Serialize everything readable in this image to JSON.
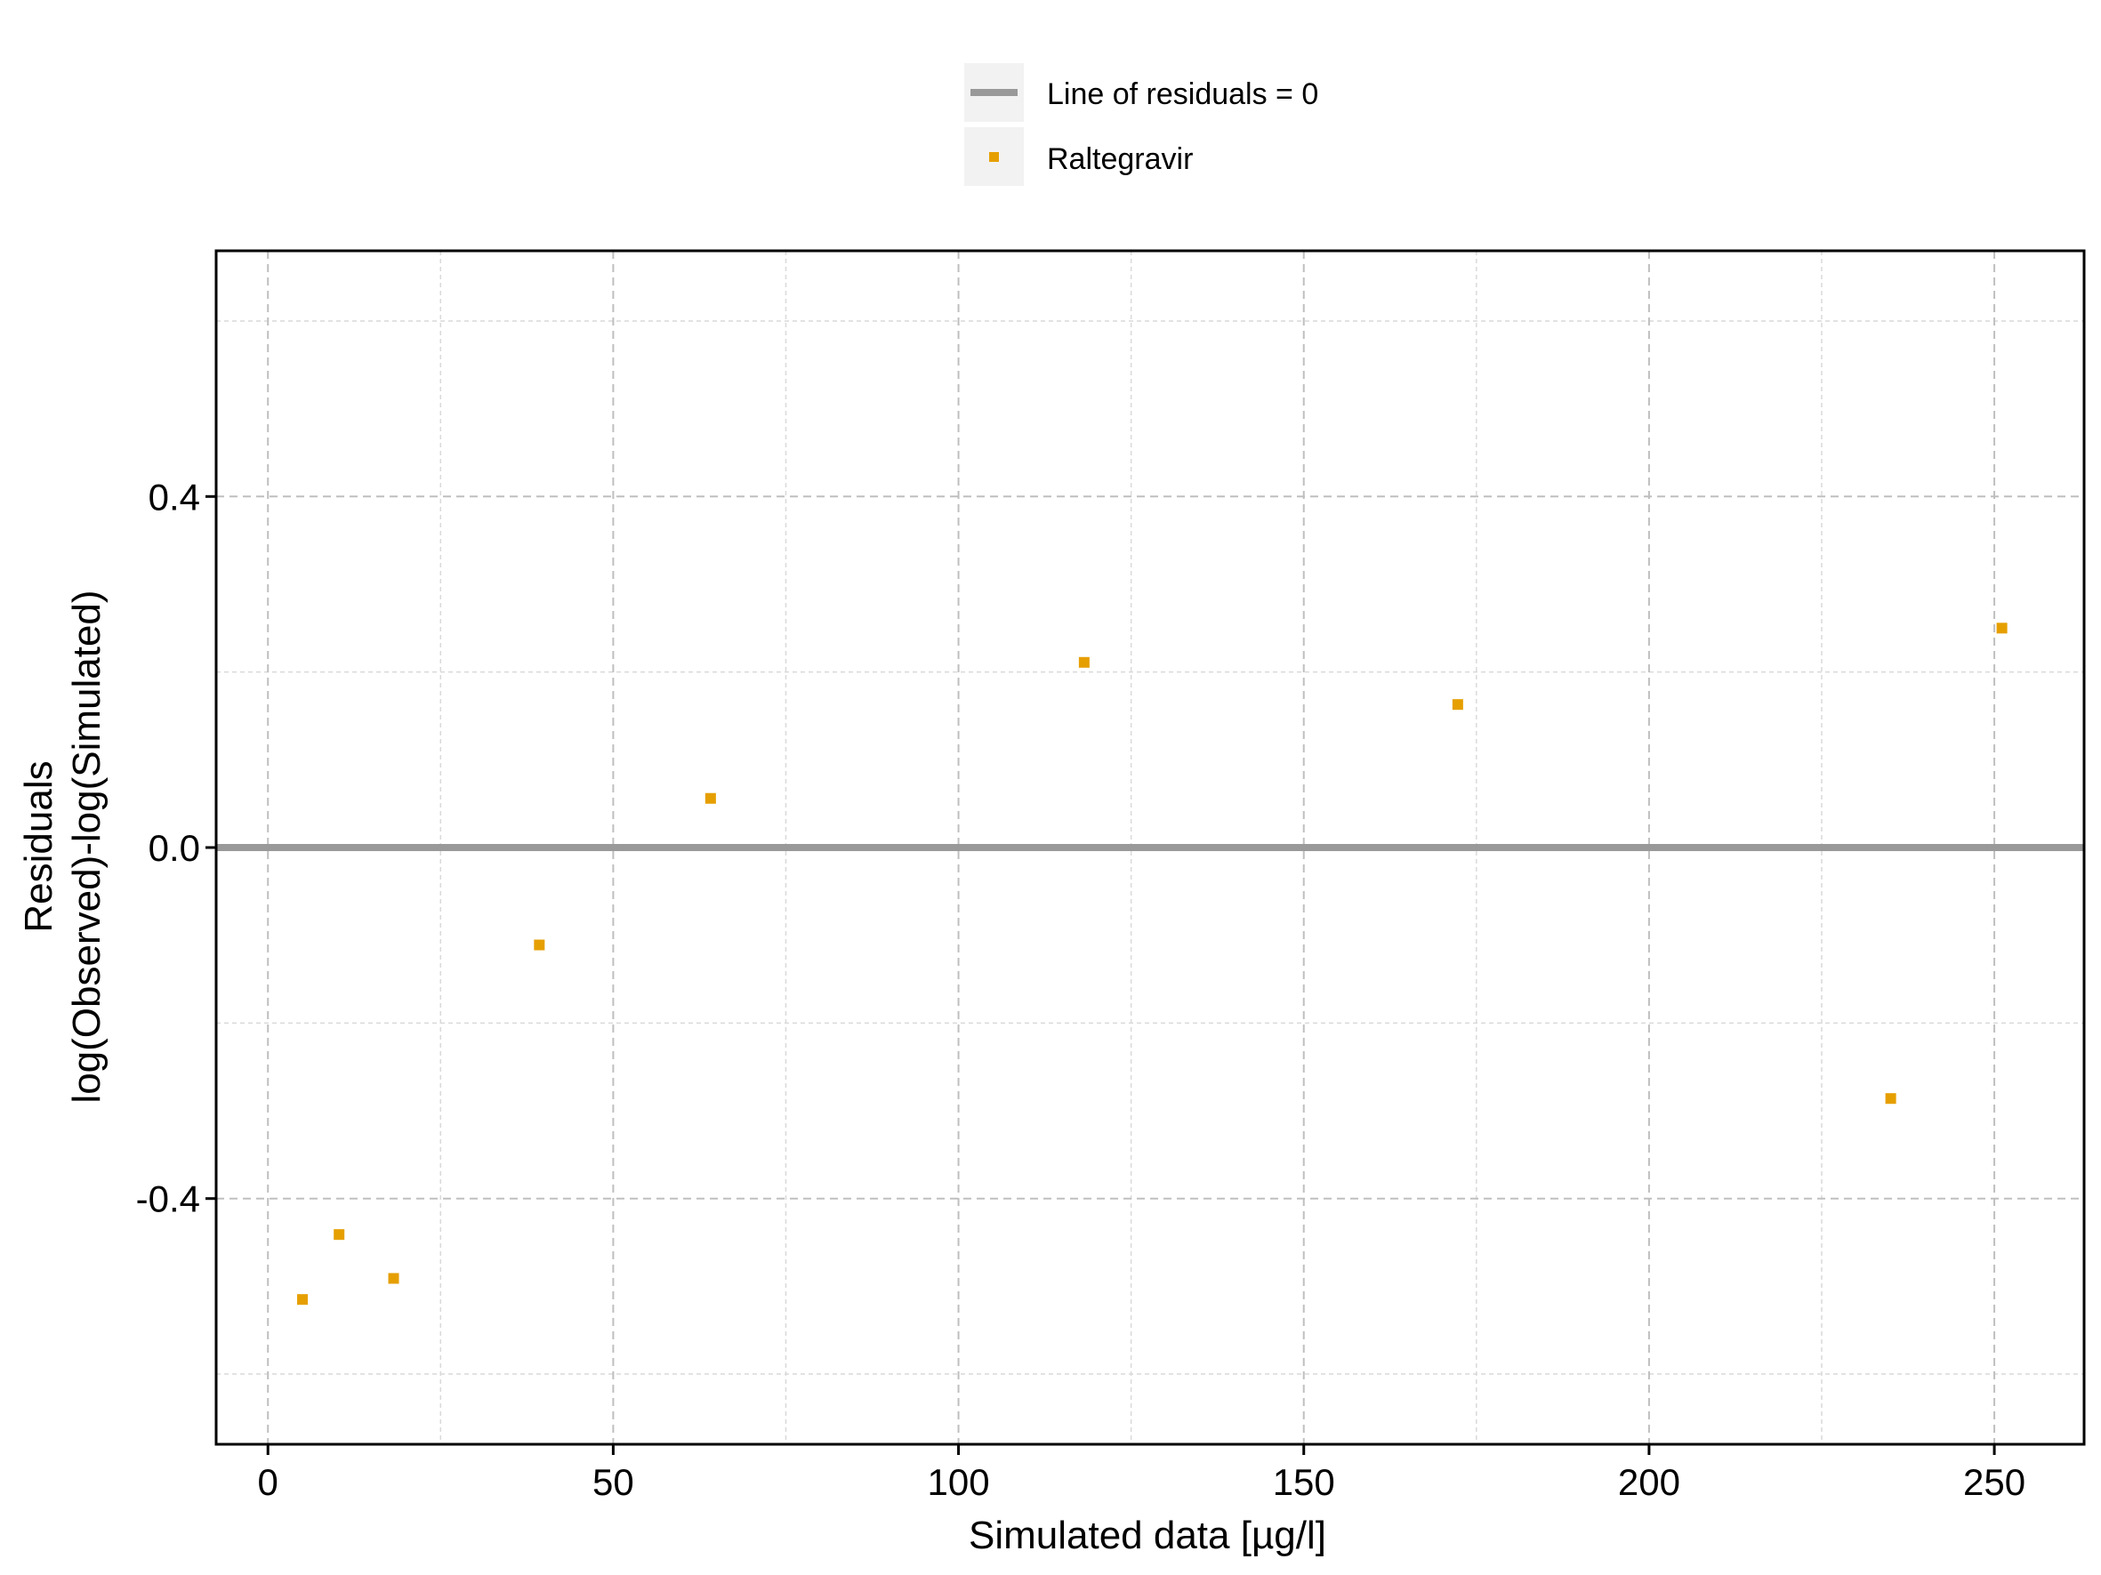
{
  "chart_data": {
    "type": "scatter",
    "title": "",
    "xlabel": "Simulated data [µg/l]",
    "ylabel_lines": [
      "Residuals",
      "log(Observed)-log(Simulated)"
    ],
    "xlim": [
      -7.5,
      263
    ],
    "ylim": [
      -0.68,
      0.68
    ],
    "x_ticks": [
      0,
      50,
      100,
      150,
      200,
      250
    ],
    "x_tick_labels": [
      "0",
      "50",
      "100",
      "150",
      "200",
      "250"
    ],
    "x_minor_ticks": [
      25,
      75,
      125,
      175,
      225
    ],
    "y_ticks": [
      -0.4,
      0.0,
      0.4
    ],
    "y_tick_labels": [
      "-0.4",
      "0.0",
      "0.4"
    ],
    "y_minor_ticks": [
      -0.6,
      -0.2,
      0.2,
      0.6
    ],
    "grid": true,
    "legend_position": "top",
    "legend": [
      {
        "label": "Line of residuals = 0",
        "kind": "line",
        "color": "#999999"
      },
      {
        "label": "Raltegravir",
        "kind": "point",
        "color": "#E69F00"
      }
    ],
    "reference_line": {
      "y": 0,
      "color": "#999999"
    },
    "series": [
      {
        "name": "Raltegravir",
        "color": "#E69F00",
        "points": [
          {
            "x": 5,
            "y": -0.515
          },
          {
            "x": 10.3,
            "y": -0.441
          },
          {
            "x": 18.2,
            "y": -0.491
          },
          {
            "x": 39.3,
            "y": -0.111
          },
          {
            "x": 64.1,
            "y": 0.056
          },
          {
            "x": 118.2,
            "y": 0.211
          },
          {
            "x": 172.3,
            "y": 0.163
          },
          {
            "x": 235.0,
            "y": -0.286
          },
          {
            "x": 251.1,
            "y": 0.25
          }
        ]
      }
    ]
  }
}
